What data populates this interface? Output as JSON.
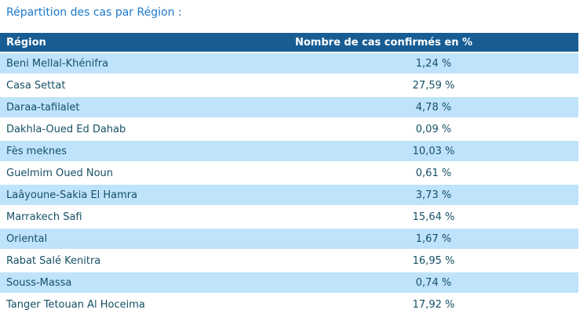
{
  "page": {
    "title": "Répartition des cas par Région :"
  },
  "table": {
    "headers": [
      "Région",
      "Nombre de cas confirmés en %"
    ],
    "rows": [
      {
        "region": "Beni Mellal-Khénifra",
        "value": "1,24 %"
      },
      {
        "region": "Casa Settat",
        "value": "27,59 %"
      },
      {
        "region": "Daraa-tafilalet",
        "value": "4,78 %"
      },
      {
        "region": "Dakhla-Oued Ed Dahab",
        "value": "0,09 %"
      },
      {
        "region": "Fès meknes",
        "value": "10,03 %"
      },
      {
        "region": "Guelmim Oued Noun",
        "value": "0,61 %"
      },
      {
        "region": "Laâyoune-Sakia El Hamra",
        "value": "3,73 %"
      },
      {
        "region": "Marrakech Safi",
        "value": "15,64 %"
      },
      {
        "region": "Oriental",
        "value": "1,67 %"
      },
      {
        "region": "Rabat Salé Kenitra",
        "value": "16,95 %"
      },
      {
        "region": "Souss-Massa",
        "value": "0,74 %"
      },
      {
        "region": "Tanger Tetouan Al Hoceima",
        "value": "17,92 %"
      }
    ]
  },
  "colors": {
    "header_bg": "#175D94",
    "row_alt_bg": "#BEE3FA",
    "cell_text": "#165067",
    "title_text": "#1C79CB",
    "header_text": "#FFFFFF"
  },
  "chart_data": {
    "type": "table",
    "title": "Répartition des cas par Région :",
    "columns": [
      "Région",
      "Nombre de cas confirmés en %"
    ],
    "categories": [
      "Beni Mellal-Khénifra",
      "Casa Settat",
      "Daraa-tafilalet",
      "Dakhla-Oued Ed Dahab",
      "Fès meknes",
      "Guelmim Oued Noun",
      "Laâyoune-Sakia El Hamra",
      "Marrakech Safi",
      "Oriental",
      "Rabat Salé Kenitra",
      "Souss-Massa",
      "Tanger Tetouan Al Hoceima"
    ],
    "values": [
      1.24,
      27.59,
      4.78,
      0.09,
      10.03,
      0.61,
      3.73,
      15.64,
      1.67,
      16.95,
      0.74,
      17.92
    ],
    "value_unit": "%",
    "decimal_separator": ","
  }
}
